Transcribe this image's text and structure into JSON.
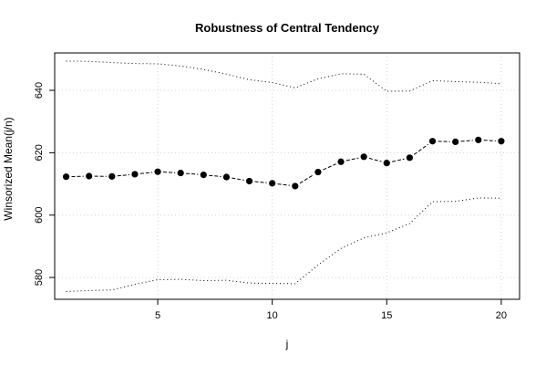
{
  "chart_data": {
    "type": "line",
    "title": "Robustness of Central Tendency",
    "xlabel": "j",
    "ylabel": "Winsorized Mean(j/n)",
    "xlim": [
      0.5,
      20.8
    ],
    "ylim": [
      573,
      652
    ],
    "x_ticks": [
      5,
      10,
      15,
      20
    ],
    "y_ticks": [
      580,
      600,
      620,
      640
    ],
    "grid": true,
    "legend": "none",
    "x": [
      1,
      2,
      3,
      4,
      5,
      6,
      7,
      8,
      9,
      10,
      11,
      12,
      13,
      14,
      15,
      16,
      17,
      18,
      19,
      20
    ],
    "series": [
      {
        "style": "points-dashed",
        "color": "#000000",
        "values": [
          612.3,
          612.5,
          612.4,
          613.1,
          613.9,
          613.5,
          612.9,
          612.2,
          610.9,
          610.2,
          609.3,
          613.8,
          617.1,
          618.7,
          616.7,
          618.4,
          623.7,
          623.5,
          624.1,
          623.7
        ]
      },
      {
        "style": "dotted",
        "color": "#000000",
        "values": [
          649.4,
          649.3,
          648.9,
          648.6,
          648.5,
          647.8,
          646.7,
          645.2,
          643.4,
          642.5,
          640.8,
          643.7,
          645.3,
          645.2,
          639.7,
          639.8,
          643.1,
          642.8,
          642.6,
          642.1
        ]
      },
      {
        "style": "dotted",
        "color": "#000000",
        "values": [
          575.5,
          575.8,
          576.0,
          577.8,
          579.3,
          579.4,
          579.0,
          579.1,
          578.2,
          578.1,
          578.0,
          584.0,
          589.3,
          592.7,
          594.3,
          597.3,
          604.3,
          604.4,
          605.5,
          605.4
        ]
      }
    ]
  }
}
